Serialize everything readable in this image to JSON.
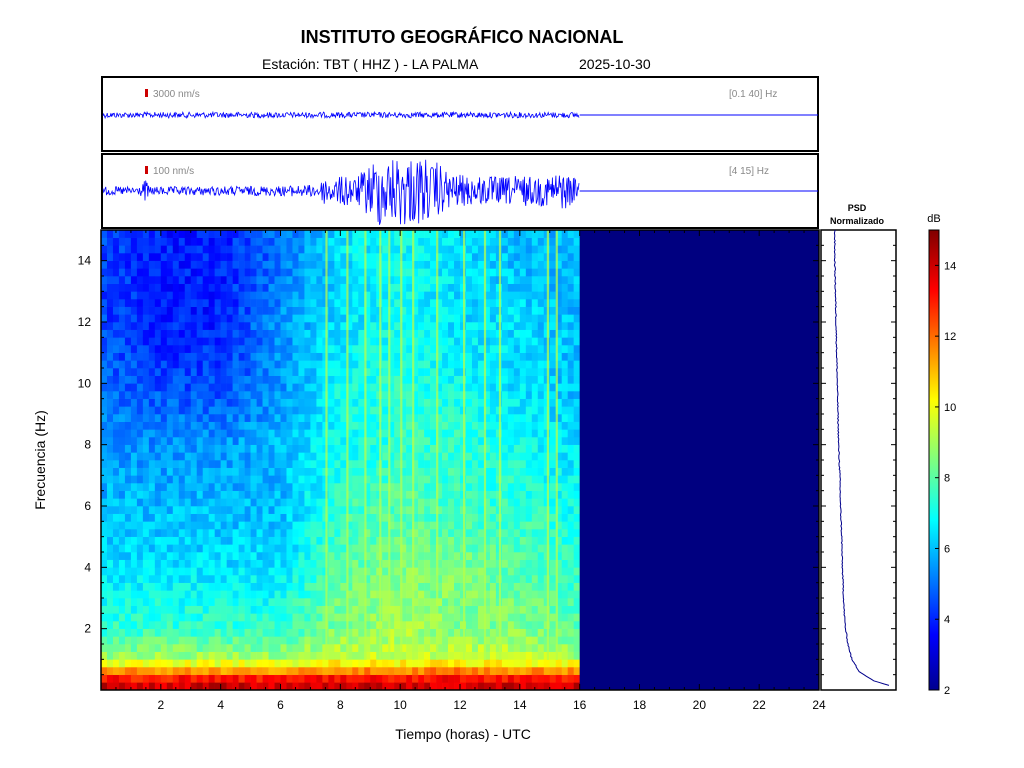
{
  "header": {
    "title": "INSTITUTO GEOGRÁFICO NACIONAL",
    "station": "Estación:  TBT ( HHZ ) - LA PALMA",
    "date": "2025-10-30"
  },
  "chart_data": [
    {
      "type": "line",
      "panel": "seismogram-broadband",
      "scale_label": "3000 nm/s",
      "band_label": "[0.1 40] Hz",
      "x_unit": "horas UTC",
      "data_end_hour": 16,
      "envelope": {
        "hours": [
          0,
          16
        ],
        "relative_amplitude": [
          0.08,
          0.08
        ]
      },
      "colors": {
        "trace": "#0000ff",
        "scale_bar": "#cc0000"
      }
    },
    {
      "type": "line",
      "panel": "seismogram-filtered",
      "scale_label": "100 nm/s",
      "band_label": "[4 15] Hz",
      "x_unit": "horas UTC",
      "data_end_hour": 16,
      "envelope": {
        "hours": [
          0,
          1.3,
          1.5,
          1.6,
          3,
          6,
          7.3,
          7.5,
          7.8,
          8.2,
          8.5,
          8.8,
          9.0,
          9.3,
          9.6,
          9.9,
          10.2,
          10.5,
          10.8,
          11.0,
          11.2,
          11.4,
          11.7,
          12.0,
          12.5,
          13.0,
          13.5,
          14.0,
          14.5,
          15.0,
          15.3,
          15.5,
          15.8,
          16.0
        ],
        "relative_amplitude": [
          0.12,
          0.12,
          0.35,
          0.12,
          0.12,
          0.14,
          0.18,
          0.45,
          0.3,
          0.5,
          0.35,
          0.6,
          0.8,
          1.0,
          0.9,
          1.0,
          1.0,
          0.95,
          1.0,
          0.7,
          0.85,
          0.65,
          0.5,
          0.45,
          0.4,
          0.42,
          0.38,
          0.45,
          0.4,
          0.45,
          0.55,
          0.5,
          0.4,
          0.35
        ]
      },
      "colors": {
        "trace": "#0000ff",
        "scale_bar": "#cc0000"
      }
    },
    {
      "type": "heatmap",
      "panel": "spectrogram",
      "xlabel": "Tiempo (horas) - UTC",
      "ylabel": "Frecuencia  (Hz)",
      "xlim": [
        0,
        24
      ],
      "ylim": [
        0,
        15
      ],
      "x_ticks": [
        2,
        4,
        6,
        8,
        10,
        12,
        14,
        16,
        18,
        20,
        22,
        24
      ],
      "y_ticks": [
        2,
        4,
        6,
        8,
        10,
        12,
        14
      ],
      "data_end_hour": 16,
      "colorscale_db": [
        2,
        15
      ],
      "no_data_color": "#000080",
      "approx_power_db": {
        "hours": [
          0,
          2,
          4,
          6,
          8,
          10,
          12,
          14,
          16
        ],
        "frequency_hz": [
          0.25,
          1,
          2,
          4,
          6,
          8,
          10,
          12,
          14
        ],
        "values": [
          [
            14,
            14,
            14,
            14,
            14,
            14,
            14,
            14,
            14
          ],
          [
            9,
            9,
            9,
            9,
            9.5,
            9.5,
            9.5,
            9.5,
            9
          ],
          [
            7.5,
            7.5,
            7.5,
            7.5,
            8.5,
            9,
            8.5,
            8.5,
            8
          ],
          [
            6.5,
            6.5,
            6.5,
            6.5,
            8,
            8.5,
            8.5,
            8,
            7.5
          ],
          [
            6,
            6,
            6,
            6,
            7.5,
            8,
            7.5,
            7.5,
            7
          ],
          [
            5.5,
            5.5,
            5.5,
            6,
            7,
            7.5,
            7.5,
            7,
            6.5
          ],
          [
            5,
            4.5,
            4.5,
            5.5,
            7,
            7.5,
            7,
            6.5,
            6
          ],
          [
            4.5,
            4,
            4,
            5.5,
            6.5,
            7,
            6.5,
            6.5,
            6
          ],
          [
            4.5,
            4,
            4,
            5,
            6.5,
            7,
            6.5,
            6,
            6
          ]
        ]
      },
      "vertical_bursts_hours": [
        7.5,
        8.2,
        8.8,
        9.3,
        9.6,
        10.0,
        10.4,
        11.2,
        12.1,
        12.8,
        13.3,
        14.9,
        15.2
      ]
    },
    {
      "type": "line",
      "panel": "psd",
      "title_line1": "PSD",
      "title_line2": "Normalizado",
      "frequency_hz": [
        0.1,
        0.3,
        0.6,
        1,
        1.5,
        2,
        2.5,
        3,
        4,
        5,
        6,
        7,
        8,
        9,
        10,
        11,
        12,
        13,
        14,
        15
      ],
      "relative_psd": [
        1.0,
        0.68,
        0.45,
        0.33,
        0.27,
        0.23,
        0.21,
        0.2,
        0.18,
        0.17,
        0.15,
        0.14,
        0.12,
        0.11,
        0.1,
        0.09,
        0.08,
        0.07,
        0.06,
        0.06
      ]
    },
    {
      "type": "heatmap",
      "panel": "colorbar",
      "label": "dB",
      "range": [
        2,
        15
      ],
      "ticks": [
        2,
        4,
        6,
        8,
        10,
        12,
        14
      ]
    }
  ],
  "colors": {
    "trace": "#0000ff",
    "scale_bar": "#cc0000",
    "no_data": "#000080",
    "frame": "#000000"
  }
}
